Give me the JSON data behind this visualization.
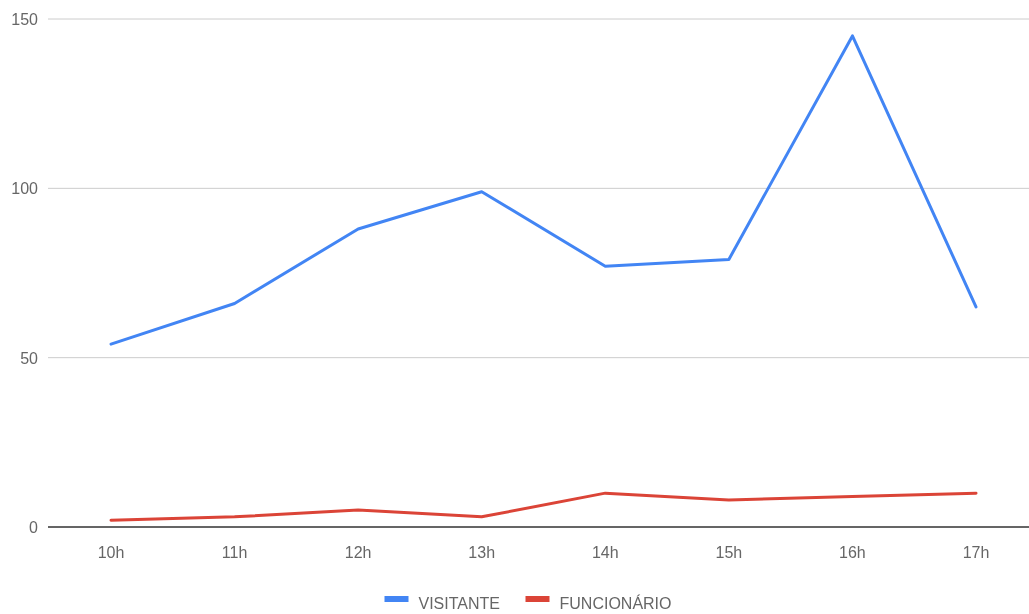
{
  "chart_data": {
    "type": "line",
    "categories": [
      "10h",
      "11h",
      "12h",
      "13h",
      "14h",
      "15h",
      "16h",
      "17h"
    ],
    "series": [
      {
        "name": "VISITANTE",
        "color": "#4285f4",
        "values": [
          54,
          66,
          88,
          99,
          77,
          79,
          145,
          65
        ]
      },
      {
        "name": "FUNCIONÁRIO",
        "color": "#db4437",
        "values": [
          2,
          3,
          5,
          3,
          10,
          8,
          9,
          10
        ]
      }
    ],
    "ylim": [
      0,
      150
    ],
    "yticks": [
      0,
      50,
      100,
      150
    ],
    "grid": "y",
    "legend": "bottom",
    "marker": "none",
    "line_style": "solid"
  }
}
